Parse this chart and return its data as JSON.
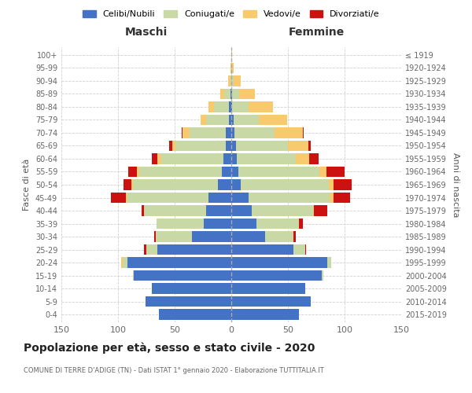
{
  "age_groups": [
    "100+",
    "95-99",
    "90-94",
    "85-89",
    "80-84",
    "75-79",
    "70-74",
    "65-69",
    "60-64",
    "55-59",
    "50-54",
    "45-49",
    "40-44",
    "35-39",
    "30-34",
    "25-29",
    "20-24",
    "15-19",
    "10-14",
    "5-9",
    "0-4"
  ],
  "birth_years": [
    "≤ 1919",
    "1920-1924",
    "1925-1929",
    "1930-1934",
    "1935-1939",
    "1940-1944",
    "1945-1949",
    "1950-1954",
    "1955-1959",
    "1960-1964",
    "1965-1969",
    "1970-1974",
    "1975-1979",
    "1980-1984",
    "1985-1989",
    "1990-1994",
    "1995-1999",
    "2000-2004",
    "2005-2009",
    "2010-2014",
    "2015-2019"
  ],
  "colors": {
    "celibe": "#4472C4",
    "coniugato": "#c8d9a5",
    "vedovo": "#f9c96e",
    "divorziato": "#cc1111"
  },
  "males": {
    "celibe": [
      0,
      0,
      0,
      1,
      2,
      2,
      5,
      5,
      7,
      8,
      12,
      20,
      22,
      24,
      35,
      65,
      92,
      86,
      70,
      76,
      64
    ],
    "coniugato": [
      0,
      0,
      1,
      5,
      13,
      20,
      32,
      44,
      55,
      73,
      75,
      72,
      55,
      42,
      32,
      10,
      4,
      1,
      0,
      0,
      0
    ],
    "vedovo": [
      0,
      1,
      2,
      4,
      5,
      5,
      6,
      3,
      3,
      2,
      1,
      1,
      0,
      0,
      0,
      0,
      1,
      0,
      0,
      0,
      0
    ],
    "divorziato": [
      0,
      0,
      0,
      0,
      0,
      0,
      1,
      3,
      5,
      8,
      7,
      13,
      2,
      0,
      1,
      2,
      0,
      0,
      0,
      0,
      0
    ]
  },
  "females": {
    "nubile": [
      0,
      0,
      0,
      1,
      1,
      2,
      3,
      4,
      5,
      6,
      8,
      15,
      18,
      22,
      30,
      55,
      85,
      80,
      65,
      70,
      60
    ],
    "coniugata": [
      0,
      0,
      2,
      6,
      14,
      22,
      35,
      46,
      52,
      72,
      78,
      72,
      54,
      38,
      25,
      10,
      3,
      1,
      0,
      0,
      0
    ],
    "vedova": [
      1,
      2,
      6,
      14,
      22,
      25,
      25,
      18,
      12,
      6,
      4,
      3,
      1,
      0,
      0,
      0,
      0,
      0,
      0,
      0,
      0
    ],
    "divorziata": [
      0,
      0,
      0,
      0,
      0,
      0,
      1,
      2,
      8,
      16,
      16,
      15,
      12,
      3,
      2,
      1,
      0,
      0,
      0,
      0,
      0
    ]
  },
  "title": "Popolazione per età, sesso e stato civile - 2020",
  "subtitle": "COMUNE DI TERRE D'ADIGE (TN) - Dati ISTAT 1° gennaio 2020 - Elaborazione TUTTITALIA.IT",
  "xlabel_left": "Maschi",
  "xlabel_right": "Femmine",
  "ylabel_left": "Fasce di età",
  "ylabel_right": "Anni di nascita",
  "xlim": 150,
  "legend_labels": [
    "Celibi/Nubili",
    "Coniugati/e",
    "Vedovi/e",
    "Divorziati/e"
  ],
  "background_color": "#ffffff",
  "grid_color": "#cccccc"
}
